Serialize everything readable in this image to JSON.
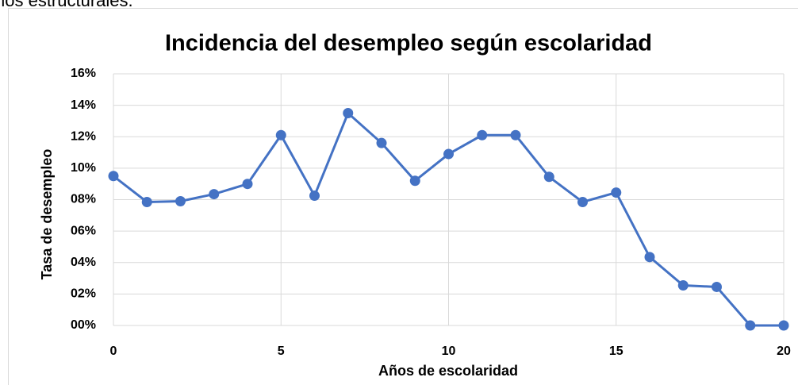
{
  "preceding_text": "nos estructurales.",
  "chart_data": {
    "type": "line",
    "title": "Incidencia del desempleo según escolaridad",
    "x_label": "Años de escolaridad",
    "y_label": "Tasa de desempleo",
    "x": [
      0,
      1,
      2,
      3,
      4,
      5,
      6,
      7,
      8,
      9,
      10,
      11,
      12,
      13,
      14,
      15,
      16,
      17,
      18,
      19,
      20
    ],
    "series": [
      {
        "name": "Tasa de desempleo",
        "color": "#4472c4",
        "values": [
          9.5,
          7.85,
          7.9,
          8.35,
          9.0,
          12.1,
          8.25,
          13.5,
          11.6,
          9.2,
          10.9,
          12.1,
          12.1,
          9.45,
          7.85,
          8.45,
          4.35,
          2.55,
          2.45,
          0,
          0
        ]
      }
    ],
    "xlim": [
      0,
      20
    ],
    "xticks": [
      0,
      5,
      10,
      15,
      20
    ],
    "ylim": [
      0,
      16
    ],
    "yticks": [
      {
        "value": 0,
        "label": "00%"
      },
      {
        "value": 2,
        "label": "02%"
      },
      {
        "value": 4,
        "label": "04%"
      },
      {
        "value": 6,
        "label": "06%"
      },
      {
        "value": 8,
        "label": "08%"
      },
      {
        "value": 10,
        "label": "10%"
      },
      {
        "value": 12,
        "label": "12%"
      },
      {
        "value": 14,
        "label": "14%"
      },
      {
        "value": 16,
        "label": "16%"
      }
    ],
    "grid": true
  }
}
